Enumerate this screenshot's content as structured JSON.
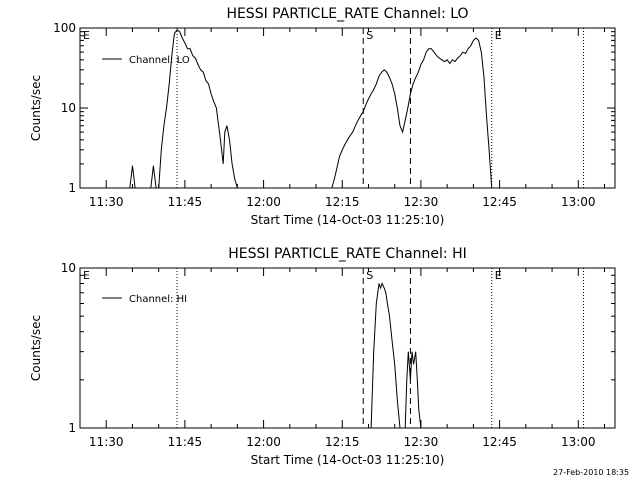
{
  "chart_data": [
    {
      "type": "line",
      "title": "HESSI PARTICLE_RATE Channel: LO",
      "xlabel": "Start Time (14-Oct-03 11:25:10)",
      "ylabel": "Counts/sec",
      "y_scale": "log",
      "xlim": [
        "11:25",
        "13:07"
      ],
      "ylim": [
        1,
        100
      ],
      "x_ticks": [
        "11:30",
        "11:45",
        "12:00",
        "12:15",
        "12:30",
        "12:45",
        "13:00"
      ],
      "y_ticks": [
        "1",
        "10",
        "100"
      ],
      "grid": false,
      "legend": {
        "position": "top-left",
        "entries": [
          "Channel: LO"
        ]
      },
      "annotations": [
        {
          "label": "E",
          "x": "11:25",
          "style": "none"
        },
        {
          "label": "",
          "x": "11:43.5",
          "style": "dotted"
        },
        {
          "label": "S",
          "x": "12:19",
          "style": "dashed"
        },
        {
          "label": "",
          "x": "12:28",
          "style": "dashed"
        },
        {
          "label": "E",
          "x": "12:43.5",
          "style": "dotted"
        },
        {
          "label": "",
          "x": "13:01",
          "style": "dotted"
        }
      ],
      "series": [
        {
          "name": "Channel: LO",
          "segments": [
            {
              "x": [
                "11:34.5",
                "11:35",
                "11:35.5"
              ],
              "y": [
                1,
                1.9,
                1
              ]
            },
            {
              "x": [
                "11:38.5",
                "11:39",
                "11:39.5"
              ],
              "y": [
                1,
                1.9,
                1
              ]
            },
            {
              "x": [
                "11:40",
                "11:40.5",
                "11:41",
                "11:41.5",
                "11:42",
                "11:42.5",
                "11:43",
                "11:43.5",
                "11:44",
                "11:44.5",
                "11:45",
                "11:45.5",
                "11:46",
                "11:46.5",
                "11:47",
                "11:47.5",
                "11:48",
                "11:48.5",
                "11:49",
                "11:49.5",
                "11:50",
                "11:50.5",
                "11:51",
                "11:51.3",
                "11:51.6",
                "11:52",
                "11:52.3",
                "11:52.6",
                "11:53",
                "11:53.5",
                "11:54",
                "11:54.5",
                "11:55"
              ],
              "y": [
                1,
                3,
                6,
                10,
                20,
                45,
                85,
                95,
                90,
                75,
                65,
                55,
                55,
                45,
                42,
                35,
                30,
                28,
                22,
                20,
                15,
                12,
                10,
                7,
                5,
                3,
                2,
                5,
                6,
                4,
                2,
                1.3,
                1
              ]
            },
            {
              "x": [
                "12:13",
                "12:13.5",
                "12:14",
                "12:14.5",
                "12:15",
                "12:15.5",
                "12:16",
                "12:16.5",
                "12:17",
                "12:17.5",
                "12:18",
                "12:18.5",
                "12:19",
                "12:19.5",
                "12:20",
                "12:20.5",
                "12:21",
                "12:21.5",
                "12:22",
                "12:22.5",
                "12:23",
                "12:23.5",
                "12:24",
                "12:24.5",
                "12:25",
                "12:25.5",
                "12:26",
                "12:26.5",
                "12:27",
                "12:27.5",
                "12:28",
                "12:28.5",
                "12:29",
                "12:29.5",
                "12:30",
                "12:30.5",
                "12:31",
                "12:31.5",
                "12:32",
                "12:32.5",
                "12:33",
                "12:33.5",
                "12:34",
                "12:34.5",
                "12:35",
                "12:35.5",
                "12:36",
                "12:36.5",
                "12:37",
                "12:37.5",
                "12:38",
                "12:38.5",
                "12:39",
                "12:39.5",
                "12:40",
                "12:40.5",
                "12:41",
                "12:41.5",
                "12:42",
                "12:42.5",
                "12:43",
                "12:43.5"
              ],
              "y": [
                1,
                1.3,
                1.8,
                2.5,
                3,
                3.5,
                4,
                4.5,
                5,
                6,
                7,
                8,
                9,
                11,
                13,
                15,
                17,
                20,
                25,
                28,
                30,
                28,
                24,
                20,
                15,
                10,
                6,
                5,
                7,
                10,
                15,
                20,
                24,
                28,
                35,
                40,
                50,
                55,
                55,
                50,
                45,
                42,
                40,
                38,
                40,
                36,
                40,
                38,
                42,
                45,
                50,
                48,
                55,
                60,
                70,
                75,
                70,
                50,
                25,
                8,
                3,
                1
              ]
            }
          ]
        }
      ]
    },
    {
      "type": "line",
      "title": "HESSI PARTICLE_RATE Channel: HI",
      "xlabel": "Start Time (14-Oct-03 11:25:10)",
      "ylabel": "Counts/sec",
      "y_scale": "log",
      "xlim": [
        "11:25",
        "13:07"
      ],
      "ylim": [
        1,
        10
      ],
      "x_ticks": [
        "11:30",
        "11:45",
        "12:00",
        "12:15",
        "12:30",
        "12:45",
        "13:00"
      ],
      "y_ticks": [
        "1",
        "10"
      ],
      "grid": false,
      "legend": {
        "position": "top-left",
        "entries": [
          "Channel: HI"
        ]
      },
      "annotations": [
        {
          "label": "E",
          "x": "11:25",
          "style": "none"
        },
        {
          "label": "",
          "x": "11:43.5",
          "style": "dotted"
        },
        {
          "label": "S",
          "x": "12:19",
          "style": "dashed"
        },
        {
          "label": "",
          "x": "12:28",
          "style": "dashed"
        },
        {
          "label": "E",
          "x": "12:43.5",
          "style": "dotted"
        },
        {
          "label": "",
          "x": "13:01",
          "style": "dotted"
        }
      ],
      "series": [
        {
          "name": "Channel: HI",
          "segments": [
            {
              "x": [
                "12:20.5",
                "12:21",
                "12:21.5",
                "12:22",
                "12:22.3",
                "12:22.6",
                "12:23",
                "12:23.3",
                "12:23.6",
                "12:24",
                "12:24.5",
                "12:25",
                "12:25.5",
                "12:26"
              ],
              "y": [
                1,
                3,
                6,
                8,
                7.5,
                8,
                7.5,
                7,
                6,
                5,
                3.5,
                2.5,
                1.5,
                1
              ]
            },
            {
              "x": [
                "12:27",
                "12:27.3",
                "12:27.6",
                "12:28",
                "12:28.3",
                "12:28.6",
                "12:29",
                "12:29.3",
                "12:29.6",
                "12:30"
              ],
              "y": [
                1,
                2,
                3,
                2,
                3,
                2.5,
                3,
                2,
                1.3,
                1
              ]
            }
          ]
        }
      ]
    }
  ],
  "footer": {
    "timestamp": "27-Feb-2010 18:35"
  }
}
